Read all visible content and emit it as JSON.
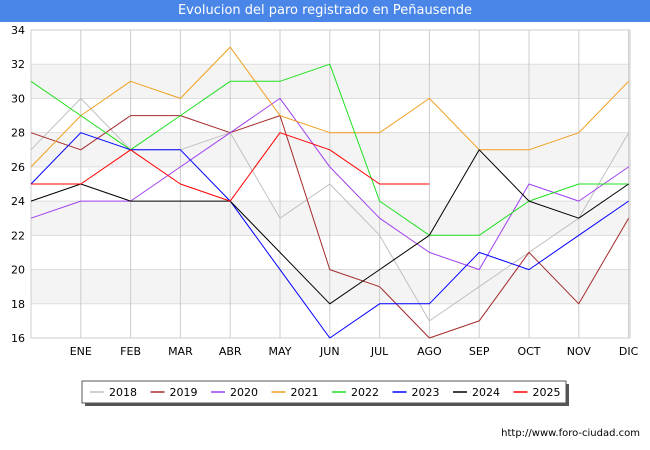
{
  "chart_data": {
    "type": "line",
    "title": "Evolucion del paro registrado en Peñausende",
    "categories": [
      "",
      "ENE",
      "FEB",
      "MAR",
      "ABR",
      "MAY",
      "JUN",
      "JUL",
      "AGO",
      "SEP",
      "OCT",
      "NOV",
      "DIC"
    ],
    "ylim": [
      16,
      34
    ],
    "yticks": [
      16,
      18,
      20,
      22,
      24,
      26,
      28,
      30,
      32,
      34
    ],
    "grid": true,
    "legend_position": "bottom",
    "series": [
      {
        "name": "2018",
        "color": "#c0c0c0",
        "values": [
          27,
          30,
          27,
          27,
          28,
          23,
          25,
          22,
          17,
          19,
          21,
          23,
          28
        ]
      },
      {
        "name": "2019",
        "color": "#a52a2a",
        "values": [
          28,
          27,
          29,
          29,
          28,
          29,
          20,
          19,
          16,
          17,
          21,
          18,
          23
        ]
      },
      {
        "name": "2020",
        "color": "#a040f0",
        "values": [
          23,
          24,
          24,
          26,
          28,
          30,
          26,
          23,
          21,
          20,
          25,
          24,
          26
        ]
      },
      {
        "name": "2021",
        "color": "#f0a020",
        "values": [
          26,
          29,
          31,
          30,
          33,
          29,
          28,
          28,
          30,
          27,
          27,
          28,
          31
        ]
      },
      {
        "name": "2022",
        "color": "#20e020",
        "values": [
          31,
          29,
          27,
          29,
          31,
          31,
          32,
          24,
          22,
          22,
          24,
          25,
          25
        ]
      },
      {
        "name": "2023",
        "color": "#0000ff",
        "values": [
          25,
          28,
          27,
          27,
          24,
          20,
          16,
          18,
          18,
          21,
          20,
          22,
          24
        ]
      },
      {
        "name": "2024",
        "color": "#000000",
        "values": [
          24,
          25,
          24,
          24,
          24,
          21,
          18,
          20,
          22,
          27,
          24,
          23,
          25
        ]
      },
      {
        "name": "2025",
        "color": "#ff0000",
        "values": [
          25,
          25,
          27,
          25,
          24,
          28,
          27,
          25,
          25,
          null,
          null,
          null,
          null
        ]
      }
    ]
  },
  "footer": {
    "url": "http://www.foro-ciudad.com"
  }
}
